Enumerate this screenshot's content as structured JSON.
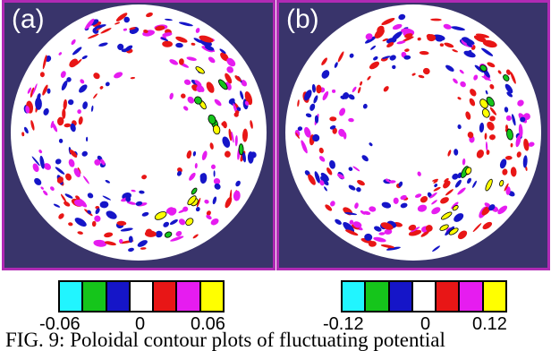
{
  "figure": {
    "panels": [
      {
        "label": "(a)",
        "colorbar_ticks": [
          "-0.06",
          "0",
          "0.06"
        ]
      },
      {
        "label": "(b)",
        "colorbar_ticks": [
          "-0.12",
          "0",
          "0.12"
        ]
      }
    ],
    "colorbar_colors": [
      "#21f5ff",
      "#15c51b",
      "#1515c8",
      "#ffffff",
      "#e81616",
      "#e61cf0",
      "#ffff00"
    ],
    "caption": "FIG. 9: Poloidal contour plots of fluctuating potential",
    "colors": {
      "background": "#39346b",
      "frame": "#b02ab4",
      "disk": "#ffffff"
    }
  }
}
